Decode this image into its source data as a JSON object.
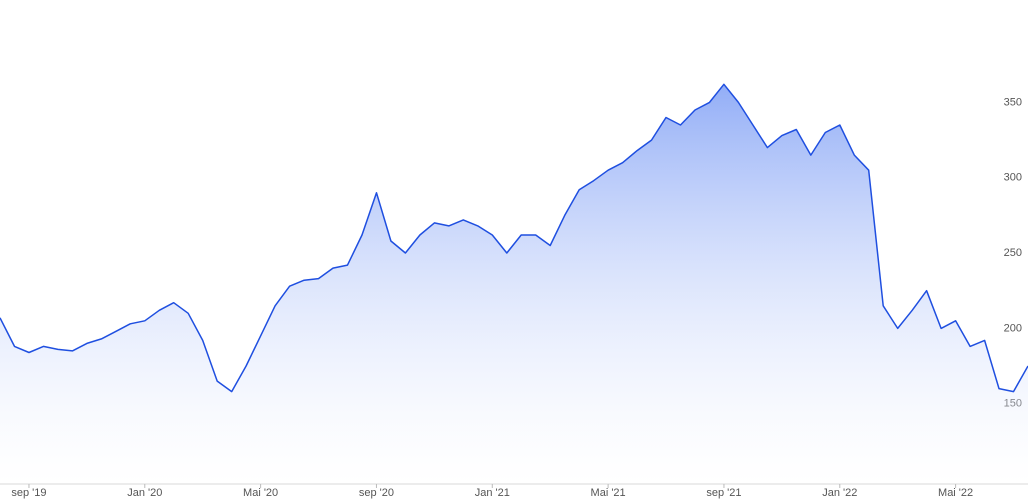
{
  "chart_data": {
    "type": "area",
    "categories": [
      null,
      null,
      "sep '19",
      null,
      null,
      null,
      null,
      null,
      null,
      null,
      "Jan '20",
      null,
      null,
      null,
      null,
      null,
      null,
      null,
      "Mai '20",
      null,
      null,
      null,
      null,
      null,
      null,
      null,
      "sep '20",
      null,
      null,
      null,
      null,
      null,
      null,
      null,
      "Jan '21",
      null,
      null,
      null,
      null,
      null,
      null,
      null,
      "Mai '21",
      null,
      null,
      null,
      null,
      null,
      null,
      null,
      "sep '21",
      null,
      null,
      null,
      null,
      null,
      null,
      null,
      "Jan '22",
      null,
      null,
      null,
      null,
      null,
      null,
      null,
      "Mai '22",
      null,
      null,
      null,
      null,
      null
    ],
    "values": [
      207,
      188,
      184,
      188,
      186,
      185,
      190,
      193,
      198,
      203,
      205,
      212,
      217,
      210,
      192,
      165,
      158,
      175,
      195,
      215,
      228,
      232,
      233,
      240,
      242,
      262,
      290,
      258,
      250,
      262,
      270,
      268,
      272,
      268,
      262,
      250,
      262,
      262,
      255,
      275,
      292,
      298,
      305,
      310,
      318,
      325,
      340,
      335,
      345,
      350,
      362,
      350,
      335,
      320,
      328,
      332,
      315,
      330,
      335,
      315,
      305,
      215,
      200,
      212,
      225,
      200,
      205,
      188,
      192,
      160,
      158,
      175
    ],
    "color": "#1f4fe0",
    "ylim": [
      96,
      418
    ],
    "yticks": [
      150,
      200,
      250,
      300,
      350
    ]
  }
}
